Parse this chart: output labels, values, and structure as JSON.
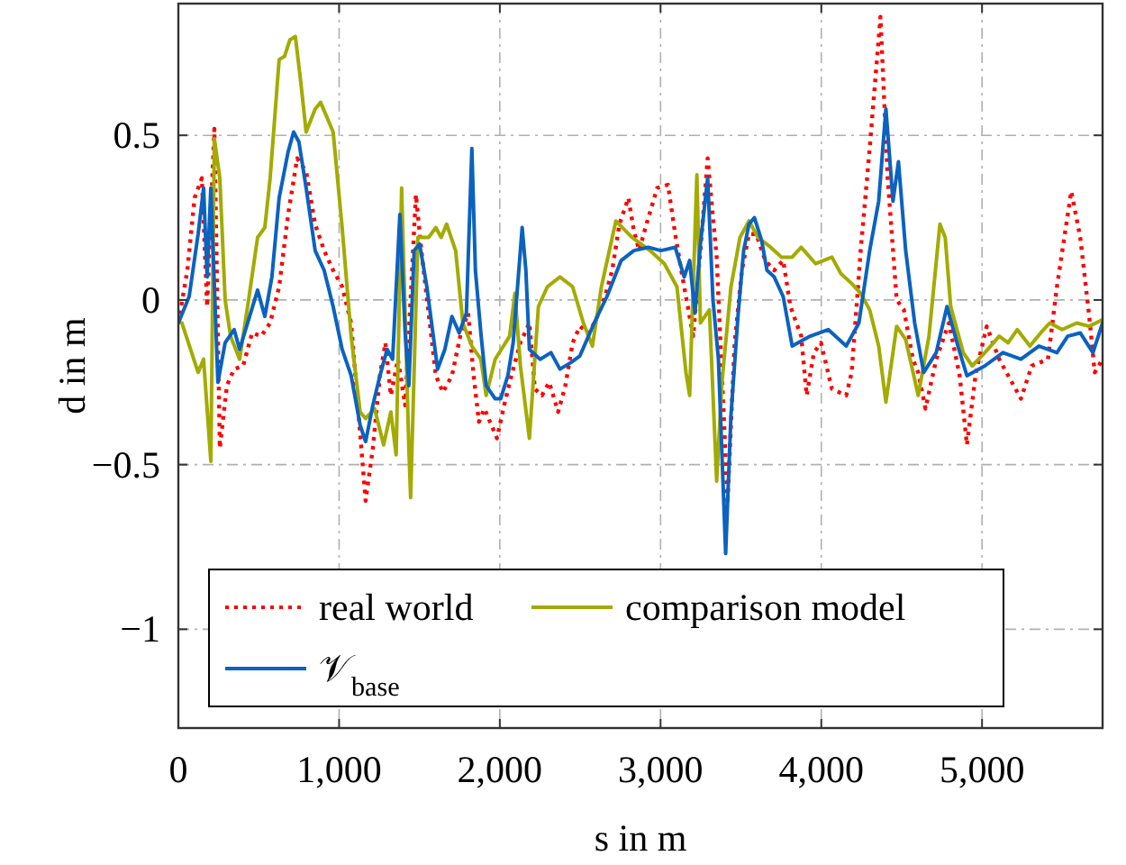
{
  "chart_data": {
    "type": "line",
    "xlabel": "s in m",
    "ylabel": "d in m",
    "xlim": [
      0,
      5750
    ],
    "ylim": [
      -1.3,
      0.9
    ],
    "xticks": [
      0,
      {
        "value": 1000,
        "label": "1,000"
      },
      {
        "value": 2000,
        "label": "2,000"
      },
      {
        "value": 3000,
        "label": "3,000"
      },
      {
        "value": 4000,
        "label": "4,000"
      },
      {
        "value": 5000,
        "label": "5,000"
      }
    ],
    "yticks": [
      -1,
      -0.5,
      0,
      0.5
    ],
    "grid": true,
    "legend": "bottom left",
    "series": [
      {
        "name": "real world",
        "color": "#ff0000",
        "line_style": "dotted",
        "x": [
          0,
          56,
          101,
          146,
          179,
          224,
          258,
          302,
          347,
          403,
          459,
          515,
          571,
          627,
          683,
          739,
          795,
          851,
          907,
          963,
          1019,
          1075,
          1120,
          1165,
          1210,
          1254,
          1288,
          1322,
          1366,
          1411,
          1478,
          1512,
          1557,
          1602,
          1646,
          1702,
          1758,
          1803,
          1837,
          1870,
          1904,
          1982,
          2027,
          2072,
          2128,
          2184,
          2218,
          2262,
          2307,
          2363,
          2408,
          2453,
          2498,
          2554,
          2598,
          2654,
          2699,
          2744,
          2800,
          2834,
          2867,
          2912,
          2979,
          3046,
          3091,
          3136,
          3203,
          3248,
          3293,
          3349,
          3394,
          3416,
          3461,
          3506,
          3550,
          3595,
          3651,
          3707,
          3763,
          3808,
          3875,
          3909,
          3954,
          3998,
          4066,
          4155,
          4189,
          4245,
          4301,
          4368,
          4413,
          4469,
          4514,
          4570,
          4603,
          4648,
          4715,
          4794,
          4861,
          4906,
          4962,
          5029,
          5107,
          5242,
          5309,
          5410,
          5466,
          5555,
          5611,
          5667,
          5701,
          5750
        ],
        "values": [
          -0.07,
          0.09,
          0.31,
          0.37,
          -0.02,
          0.52,
          -0.45,
          -0.26,
          -0.21,
          -0.2,
          -0.1,
          -0.11,
          -0.07,
          0.04,
          0.26,
          0.43,
          0.39,
          0.23,
          0.15,
          0.09,
          0.04,
          -0.07,
          -0.34,
          -0.61,
          -0.45,
          -0.23,
          -0.13,
          -0.29,
          -0.18,
          -0.32,
          0.32,
          0.15,
          -0.04,
          -0.23,
          -0.28,
          -0.23,
          -0.1,
          -0.04,
          -0.23,
          -0.37,
          -0.33,
          -0.42,
          -0.32,
          -0.23,
          -0.13,
          -0.07,
          -0.27,
          -0.29,
          -0.25,
          -0.34,
          -0.26,
          -0.13,
          -0.08,
          -0.1,
          -0.06,
          0.01,
          0.09,
          0.23,
          0.31,
          0.21,
          0.15,
          0.23,
          0.34,
          0.35,
          0.2,
          0.07,
          -0.11,
          0.15,
          0.43,
          0.13,
          -0.36,
          -0.62,
          -0.13,
          0.09,
          0.2,
          0.2,
          0.12,
          0.09,
          0.12,
          -0.02,
          -0.11,
          -0.29,
          -0.16,
          -0.13,
          -0.27,
          -0.29,
          -0.22,
          0.15,
          0.46,
          0.86,
          0.37,
          0.0,
          -0.03,
          -0.18,
          -0.22,
          -0.33,
          -0.18,
          -0.07,
          -0.23,
          -0.44,
          -0.22,
          -0.08,
          -0.18,
          -0.3,
          -0.2,
          -0.18,
          0.04,
          0.33,
          0.19,
          -0.05,
          -0.22,
          -0.18
        ]
      },
      {
        "name": "comparison model",
        "color": "#a3ab00",
        "line_style": "solid",
        "x": [
          22,
          123,
          157,
          202,
          224,
          258,
          291,
          325,
          381,
          437,
          493,
          538,
          571,
          627,
          661,
          694,
          728,
          762,
          795,
          851,
          885,
          963,
          1019,
          1075,
          1131,
          1165,
          1221,
          1277,
          1322,
          1355,
          1389,
          1434,
          1445,
          1490,
          1557,
          1602,
          1635,
          1669,
          1725,
          1770,
          1826,
          1882,
          1915,
          1971,
          2061,
          2094,
          2128,
          2184,
          2240,
          2296,
          2374,
          2453,
          2520,
          2576,
          2632,
          2722,
          2822,
          2934,
          3024,
          3102,
          3158,
          3181,
          3226,
          3248,
          3304,
          3349,
          3382,
          3438,
          3494,
          3550,
          3606,
          3685,
          3752,
          3819,
          3875,
          3965,
          4066,
          4122,
          4189,
          4245,
          4301,
          4357,
          4402,
          4469,
          4525,
          4603,
          4670,
          4738,
          4771,
          4805,
          4883,
          4939,
          5018,
          5107,
          5162,
          5219,
          5298,
          5365,
          5421,
          5499,
          5589,
          5667,
          5750
        ],
        "values": [
          -0.07,
          -0.22,
          -0.18,
          -0.49,
          0.49,
          0.37,
          0,
          -0.11,
          -0.18,
          0,
          0.19,
          0.22,
          0.37,
          0.73,
          0.74,
          0.79,
          0.8,
          0.66,
          0.51,
          0.58,
          0.6,
          0.51,
          0.22,
          -0.11,
          -0.34,
          -0.36,
          -0.33,
          -0.44,
          -0.34,
          -0.47,
          0.34,
          -0.45,
          -0.6,
          0.19,
          0.19,
          0.22,
          0.19,
          0.23,
          0.15,
          -0.07,
          -0.14,
          -0.18,
          -0.29,
          -0.18,
          -0.11,
          0.02,
          -0.2,
          -0.42,
          -0.02,
          0.04,
          0.07,
          0.04,
          -0.07,
          -0.14,
          0.04,
          0.24,
          0.19,
          0.15,
          0.11,
          0.04,
          -0.22,
          -0.29,
          0.38,
          -0.07,
          -0.03,
          -0.55,
          -0.25,
          0.04,
          0.19,
          0.24,
          0.19,
          0.16,
          0.13,
          0.13,
          0.16,
          0.11,
          0.13,
          0.08,
          0.05,
          0.02,
          -0.03,
          -0.14,
          -0.31,
          -0.08,
          -0.12,
          -0.29,
          -0.11,
          0.23,
          0.19,
          -0.02,
          -0.16,
          -0.2,
          -0.16,
          -0.11,
          -0.13,
          -0.09,
          -0.14,
          -0.1,
          -0.07,
          -0.09,
          -0.07,
          -0.08,
          -0.06
        ]
      },
      {
        "name": "𝒱$_{base}$",
        "color": "#0b62c0",
        "line_style": "solid",
        "x": [
          0,
          67,
          123,
          157,
          179,
          202,
          246,
          291,
          347,
          381,
          437,
          493,
          538,
          582,
          627,
          683,
          717,
          750,
          795,
          851,
          907,
          963,
          1019,
          1075,
          1131,
          1165,
          1210,
          1254,
          1299,
          1333,
          1378,
          1411,
          1434,
          1467,
          1501,
          1546,
          1613,
          1658,
          1702,
          1747,
          1792,
          1826,
          1848,
          1882,
          1915,
          1971,
          2005,
          2050,
          2083,
          2139,
          2162,
          2184,
          2251,
          2318,
          2374,
          2442,
          2498,
          2587,
          2666,
          2755,
          2834,
          2923,
          3002,
          3091,
          3147,
          3181,
          3214,
          3248,
          3293,
          3326,
          3360,
          3405,
          3438,
          3483,
          3517,
          3550,
          3584,
          3629,
          3662,
          3707,
          3763,
          3819,
          3931,
          4043,
          4155,
          4234,
          4301,
          4357,
          4402,
          4446,
          4480,
          4525,
          4581,
          4637,
          4715,
          4782,
          4850,
          4906,
          5018,
          5130,
          5242,
          5354,
          5466,
          5533,
          5611,
          5690,
          5750
        ],
        "values": [
          -0.07,
          0.01,
          0.2,
          0.34,
          0.07,
          0.34,
          -0.25,
          -0.13,
          -0.09,
          -0.15,
          -0.06,
          0.03,
          -0.05,
          0.07,
          0.31,
          0.45,
          0.51,
          0.48,
          0.34,
          0.15,
          0.09,
          -0.02,
          -0.15,
          -0.23,
          -0.38,
          -0.43,
          -0.32,
          -0.23,
          -0.15,
          -0.18,
          0.26,
          -0.1,
          -0.26,
          0.15,
          0.17,
          0.04,
          -0.21,
          -0.15,
          -0.05,
          -0.1,
          -0.04,
          0.46,
          0.09,
          -0.1,
          -0.26,
          -0.3,
          -0.3,
          -0.23,
          -0.13,
          0.22,
          0.09,
          -0.15,
          -0.18,
          -0.16,
          -0.21,
          -0.19,
          -0.17,
          -0.07,
          0.01,
          0.12,
          0.15,
          0.16,
          0.15,
          0.16,
          0.07,
          0.12,
          -0.04,
          0.17,
          0.37,
          0.0,
          -0.18,
          -0.77,
          -0.35,
          -0.04,
          0.15,
          0.23,
          0.25,
          0.18,
          0.09,
          0.07,
          0.01,
          -0.14,
          -0.11,
          -0.09,
          -0.14,
          -0.07,
          0.15,
          0.3,
          0.58,
          0.3,
          0.42,
          0.15,
          -0.07,
          -0.22,
          -0.16,
          -0.02,
          -0.14,
          -0.23,
          -0.2,
          -0.16,
          -0.18,
          -0.14,
          -0.16,
          -0.11,
          -0.1,
          -0.16,
          -0.07
        ]
      }
    ]
  }
}
